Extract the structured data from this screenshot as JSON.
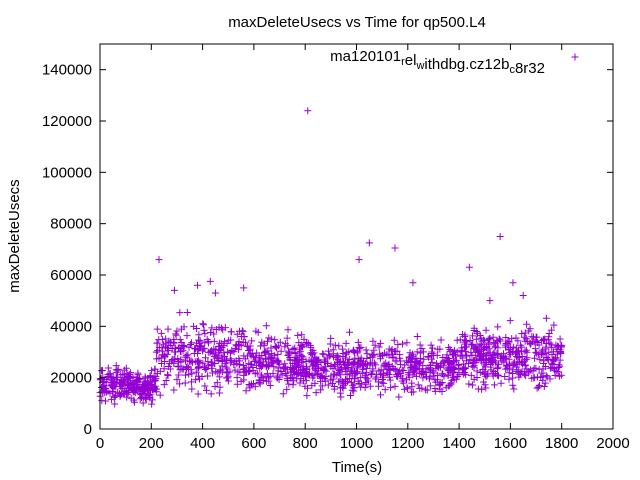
{
  "chart_data": {
    "type": "scatter",
    "title": "maxDeleteUsecs vs Time for qp500.L4",
    "xlabel": "Time(s)",
    "ylabel": "maxDeleteUsecs",
    "xlim": [
      0,
      2000
    ],
    "ylim": [
      0,
      150000
    ],
    "x_ticks": [
      0,
      200,
      400,
      600,
      800,
      1000,
      1200,
      1400,
      1600,
      1800,
      2000
    ],
    "y_ticks": [
      0,
      20000,
      40000,
      60000,
      80000,
      100000,
      120000,
      140000
    ],
    "grid": false,
    "legend_position": "top-right",
    "series": [
      {
        "name": "ma120101_rel_withdbg.cz12b_c8r32",
        "legend_parts": [
          {
            "text": "ma120101"
          },
          {
            "text": "r",
            "sub": true
          },
          {
            "text": "el"
          },
          {
            "text": "w",
            "sub": true
          },
          {
            "text": "ithdbg.cz12b"
          },
          {
            "text": "c",
            "sub": true
          },
          {
            "text": "8r32"
          }
        ],
        "color": "#9400d3",
        "marker": "plus",
        "segments": [
          {
            "x_start": 0,
            "x_end": 220,
            "low": 8000,
            "high": 26000,
            "count": 230
          },
          {
            "x_start": 220,
            "x_end": 480,
            "low": 10000,
            "high": 48000,
            "count": 220
          },
          {
            "x_start": 480,
            "x_end": 800,
            "low": 10000,
            "high": 42000,
            "count": 290
          },
          {
            "x_start": 800,
            "x_end": 1400,
            "low": 10000,
            "high": 38000,
            "count": 520
          },
          {
            "x_start": 1400,
            "x_end": 1800,
            "low": 12000,
            "high": 44000,
            "count": 380
          }
        ],
        "outliers": [
          {
            "x": 230,
            "y": 66000
          },
          {
            "x": 290,
            "y": 54000
          },
          {
            "x": 380,
            "y": 56000
          },
          {
            "x": 430,
            "y": 57500
          },
          {
            "x": 450,
            "y": 53000
          },
          {
            "x": 560,
            "y": 55000
          },
          {
            "x": 810,
            "y": 124000
          },
          {
            "x": 1010,
            "y": 66000
          },
          {
            "x": 1050,
            "y": 72500
          },
          {
            "x": 1150,
            "y": 70500
          },
          {
            "x": 1220,
            "y": 57000
          },
          {
            "x": 1440,
            "y": 63000
          },
          {
            "x": 1560,
            "y": 75000
          },
          {
            "x": 1610,
            "y": 57000
          },
          {
            "x": 1520,
            "y": 50000
          },
          {
            "x": 1650,
            "y": 52000
          }
        ]
      }
    ]
  }
}
